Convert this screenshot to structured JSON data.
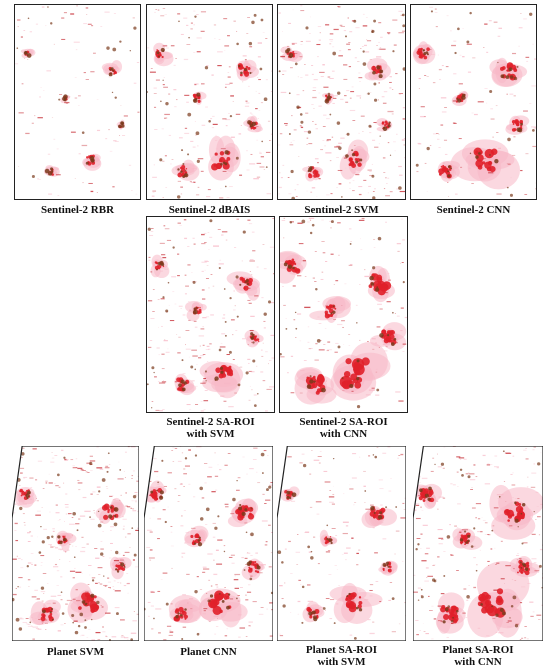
{
  "colors": {
    "burn_core": "#e0202a",
    "burn_halo": "#f7b8c6",
    "burn_dark": "#7a3a1c",
    "burn_scatter": "#c8323a",
    "frame": "#222222"
  },
  "panels": {
    "s2_rbr": {
      "caption": [
        "Sentinel-2 RBR"
      ]
    },
    "s2_dbais": {
      "caption": [
        "Sentinel-2 dBAIS"
      ]
    },
    "s2_svm": {
      "caption": [
        "Sentinel-2 SVM"
      ]
    },
    "s2_cnn": {
      "caption": [
        "Sentinel-2 CNN"
      ]
    },
    "s2_saroi_svm": {
      "caption": [
        "Sentinel-2 SA-ROI",
        "with SVM"
      ]
    },
    "s2_saroi_cnn": {
      "caption": [
        "Sentinel-2 SA-ROI",
        "with CNN"
      ]
    },
    "planet_svm": {
      "caption": [
        "Planet SVM"
      ]
    },
    "planet_cnn": {
      "caption": [
        "Planet CNN"
      ]
    },
    "planet_saroi_svm": {
      "caption": [
        "Planet SA-ROI",
        "with SVM"
      ]
    },
    "planet_saroi_cnn": {
      "caption": [
        "Planet SA-ROI",
        "with CNN"
      ]
    }
  }
}
